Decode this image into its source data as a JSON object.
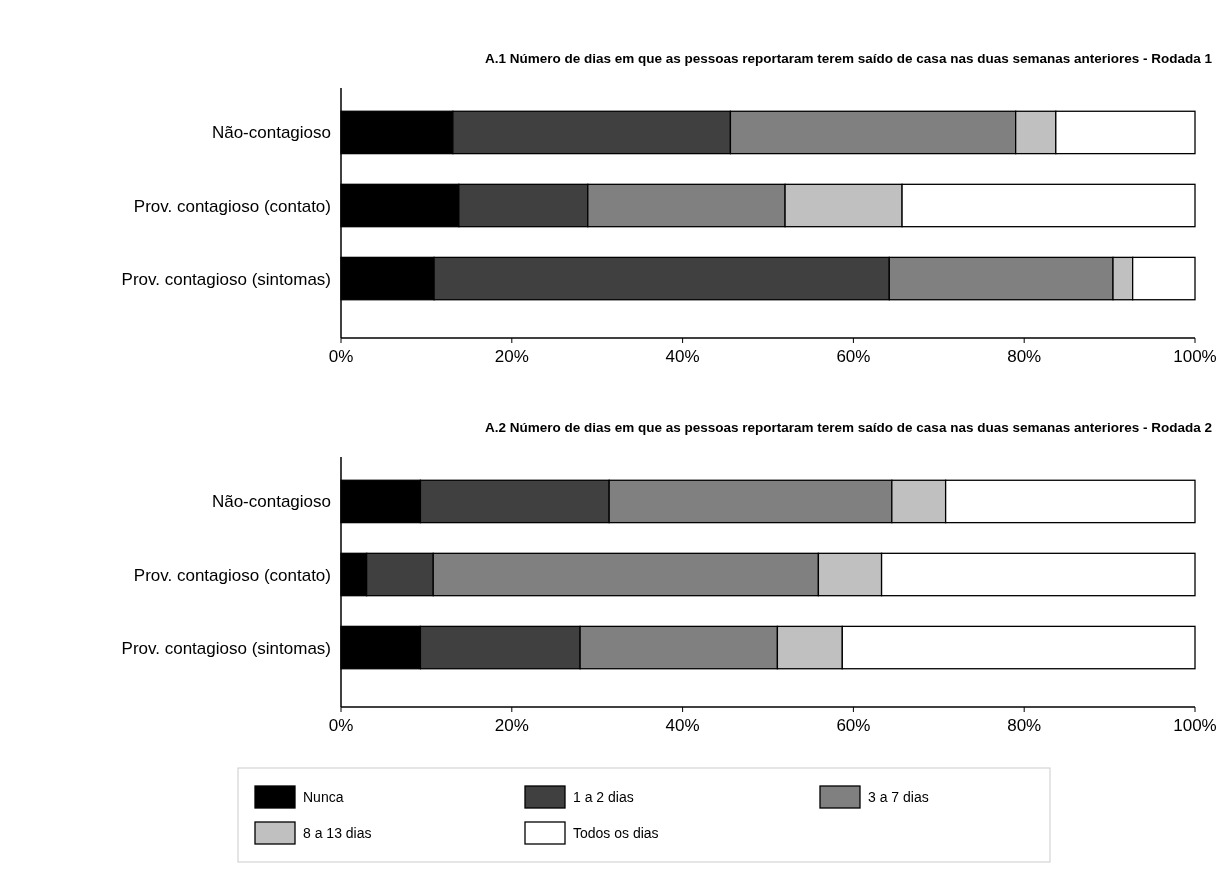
{
  "chart_data": [
    {
      "type": "bar",
      "orientation": "horizontal",
      "stacked": true,
      "title": "A.1 Número de dias em que as pessoas reportaram terem saído de casa nas duas semanas anteriores - Rodada 1",
      "categories": [
        "Não-contagioso",
        "Prov. contagioso (contato)",
        "Prov. contagioso (sintomas)"
      ],
      "xlim": [
        0,
        100
      ],
      "xticks": [
        {
          "value": 0,
          "label": "0%"
        },
        {
          "value": 20,
          "label": "20%"
        },
        {
          "value": 40,
          "label": "40%"
        },
        {
          "value": 60,
          "label": "60%"
        },
        {
          "value": 80,
          "label": "80%"
        },
        {
          "value": 100,
          "label": "100%"
        }
      ],
      "grid": false,
      "series": [
        {
          "color": "#000000",
          "values": [
            13.1,
            13.8,
            10.9
          ]
        },
        {
          "color": "#404040",
          "values": [
            32.5,
            15.1,
            53.3
          ]
        },
        {
          "color": "#808080",
          "values": [
            33.4,
            23.1,
            26.2
          ]
        },
        {
          "color": "#c0c0c0",
          "values": [
            4.7,
            13.7,
            2.3
          ]
        },
        {
          "color": "#ffffff",
          "values": [
            16.3,
            34.3,
            7.3
          ]
        }
      ]
    },
    {
      "type": "bar",
      "orientation": "horizontal",
      "stacked": true,
      "title": "A.2 Número de dias em que as pessoas reportaram terem saído de casa nas duas semanas anteriores - Rodada 2",
      "categories": [
        "Não-contagioso",
        "Prov. contagioso (contato)",
        "Prov. contagioso (sintomas)"
      ],
      "xlim": [
        0,
        100
      ],
      "xticks": [
        {
          "value": 0,
          "label": "0%"
        },
        {
          "value": 20,
          "label": "20%"
        },
        {
          "value": 40,
          "label": "40%"
        },
        {
          "value": 60,
          "label": "60%"
        },
        {
          "value": 80,
          "label": "80%"
        },
        {
          "value": 100,
          "label": "100%"
        }
      ],
      "grid": false,
      "legend": "bottom",
      "series": [
        {
          "name": "Nunca",
          "color": "#000000",
          "values": [
            9.3,
            3.0,
            9.3
          ]
        },
        {
          "name": "1 a 2 dias",
          "color": "#404040",
          "values": [
            22.1,
            7.8,
            18.7
          ]
        },
        {
          "name": "3 a 7 dias",
          "color": "#808080",
          "values": [
            33.1,
            45.1,
            23.1
          ]
        },
        {
          "name": "8 a 13 dias",
          "color": "#c0c0c0",
          "values": [
            6.3,
            7.4,
            7.6
          ]
        },
        {
          "name": "Todos os dias",
          "color": "#ffffff",
          "values": [
            29.2,
            36.7,
            41.3
          ]
        }
      ]
    }
  ]
}
